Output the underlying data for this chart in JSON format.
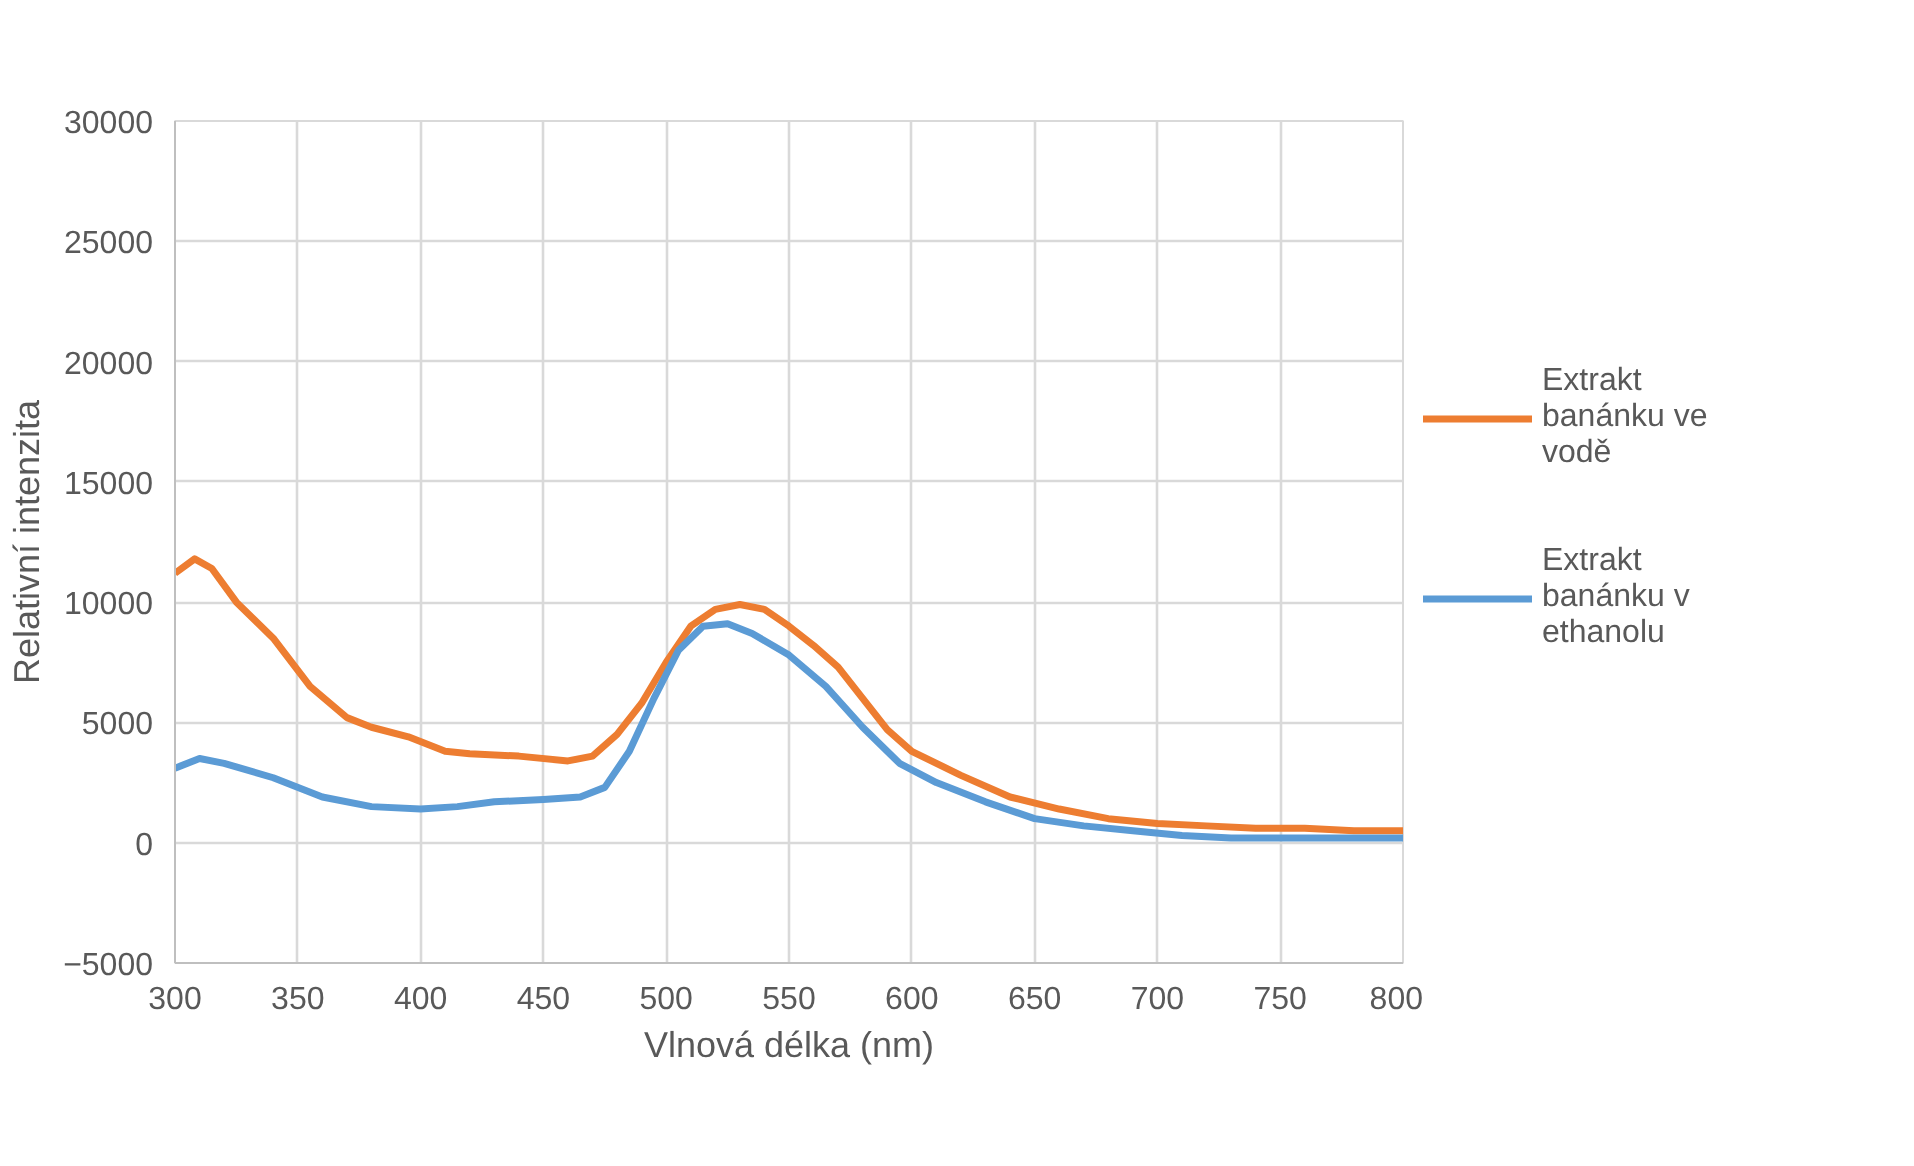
{
  "chart_data": {
    "type": "line",
    "xlabel": "Vlnová délka (nm)",
    "ylabel": "Relativní intenzita",
    "xlim": [
      300,
      800
    ],
    "xticks": [
      300,
      350,
      400,
      450,
      500,
      550,
      600,
      650,
      700,
      750,
      800
    ],
    "ylim": [
      -5000,
      30000
    ],
    "yticks": [
      -5000,
      0,
      5000,
      10000,
      15000,
      20000,
      25000,
      30000
    ],
    "grid": true,
    "legend": "right",
    "series": [
      {
        "name": "Extrakt banánku ve vodě",
        "color": "#ed7d31",
        "x": [
          300,
          308,
          315,
          325,
          340,
          355,
          370,
          380,
          395,
          410,
          420,
          440,
          460,
          470,
          480,
          490,
          500,
          510,
          520,
          530,
          540,
          550,
          560,
          570,
          580,
          590,
          600,
          620,
          640,
          660,
          680,
          700,
          720,
          740,
          760,
          780,
          800
        ],
        "values": [
          11200,
          11800,
          11400,
          10000,
          8500,
          6500,
          5200,
          4800,
          4400,
          3800,
          3700,
          3600,
          3400,
          3600,
          4500,
          5800,
          7500,
          9000,
          9700,
          9900,
          9700,
          9000,
          8200,
          7300,
          6000,
          4700,
          3800,
          2800,
          1900,
          1400,
          1000,
          800,
          700,
          600,
          600,
          500,
          500
        ]
      },
      {
        "name": "Extrakt banánku v ethanolu",
        "color": "#5b9bd5",
        "x": [
          300,
          310,
          320,
          340,
          360,
          380,
          400,
          415,
          430,
          450,
          465,
          475,
          485,
          495,
          505,
          515,
          525,
          535,
          550,
          565,
          580,
          595,
          610,
          630,
          650,
          670,
          690,
          710,
          730,
          760,
          800
        ],
        "values": [
          3100,
          3500,
          3300,
          2700,
          1900,
          1500,
          1400,
          1500,
          1700,
          1800,
          1900,
          2300,
          3800,
          6000,
          8000,
          9000,
          9100,
          8700,
          7800,
          6500,
          4800,
          3300,
          2500,
          1700,
          1000,
          700,
          500,
          300,
          200,
          200,
          200
        ]
      }
    ]
  }
}
